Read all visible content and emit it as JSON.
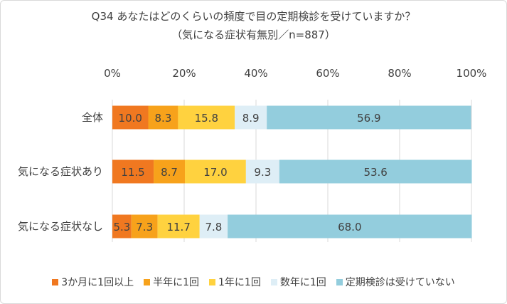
{
  "chart_data": {
    "type": "bar",
    "orientation": "horizontal",
    "stacked": true,
    "title": "Q34 あなたはどのくらいの頻度で目の定期検診を受けていますか？",
    "subtitle": "（気になる症状有無別／n=887）",
    "categories": [
      "全体",
      "気になる症状あり",
      "気になる症状なし"
    ],
    "x_ticks": [
      "0%",
      "20%",
      "40%",
      "60%",
      "80%",
      "100%"
    ],
    "xlim": [
      0,
      100
    ],
    "legend_position": "bottom",
    "series": [
      {
        "name": "3か月に1回以上",
        "color": "#f07820",
        "values": [
          10.0,
          11.5,
          5.3
        ],
        "labels": [
          "10.0",
          "11.5",
          "5.3"
        ]
      },
      {
        "name": "半年に1回",
        "color": "#f7a21b",
        "values": [
          8.3,
          8.7,
          7.3
        ],
        "labels": [
          "8.3",
          "8.7",
          "7.3"
        ]
      },
      {
        "name": "1年に1回",
        "color": "#ffd23f",
        "values": [
          15.8,
          17.0,
          11.7
        ],
        "labels": [
          "15.8",
          "17.0",
          "11.7"
        ]
      },
      {
        "name": "数年に1回",
        "color": "#deeef6",
        "values": [
          8.9,
          9.3,
          7.8
        ],
        "labels": [
          "8.9",
          "9.3",
          "7.8"
        ]
      },
      {
        "name": "定期検診は受けていない",
        "color": "#93cddd",
        "values": [
          56.9,
          53.6,
          68.0
        ],
        "labels": [
          "56.9",
          "53.6",
          "68.0"
        ]
      }
    ]
  }
}
